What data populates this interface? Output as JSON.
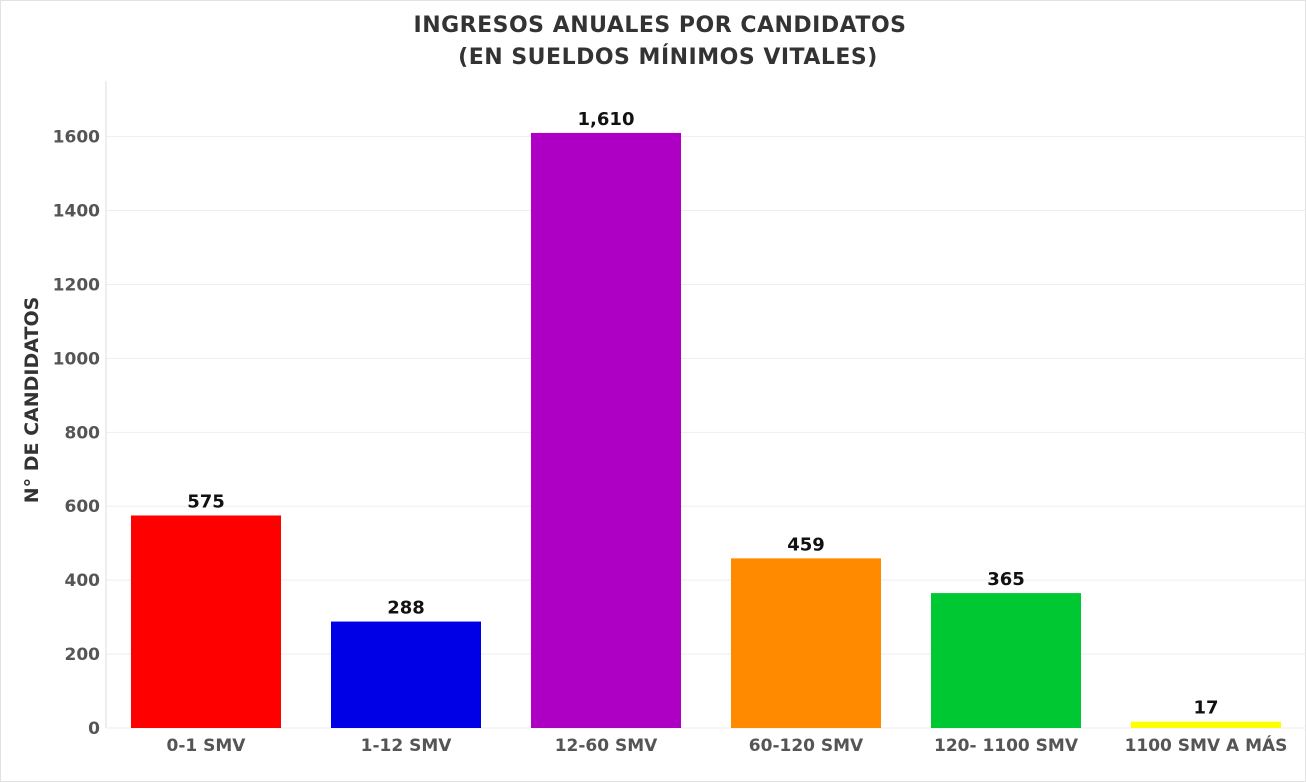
{
  "chart_data": {
    "type": "bar",
    "title": "INGRESOS ANUALES POR CANDIDATOS",
    "subtitle": "(EN SUELDOS MÍNIMOS VITALES)",
    "xlabel": "",
    "ylabel": "N° DE CANDIDATOS",
    "categories": [
      "0-1 SMV",
      "1-12 SMV",
      "12-60 SMV",
      "60-120 SMV",
      "120- 1100 SMV",
      "1100 SMV A MÁS"
    ],
    "values": [
      575,
      288,
      1610,
      459,
      365,
      17
    ],
    "value_labels": [
      "575",
      "288",
      "1,610",
      "459",
      "365",
      "17"
    ],
    "colors": [
      "#ff0000",
      "#0000e6",
      "#ae00c4",
      "#ff8a00",
      "#00c832",
      "#ffff00"
    ],
    "yticks": [
      0,
      200,
      400,
      600,
      800,
      1000,
      1200,
      1400,
      1600
    ],
    "ylim": [
      0,
      1750
    ],
    "grid": true,
    "legend": "none"
  }
}
